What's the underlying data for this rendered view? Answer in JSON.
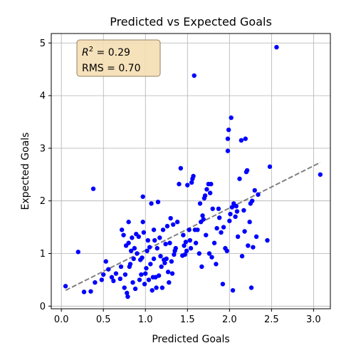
{
  "chart_data": {
    "type": "scatter",
    "title": "Predicted vs Expected Goals",
    "xlabel": "Predicted Goals",
    "ylabel": "Expected Goals",
    "xlim": [
      -0.12,
      3.2
    ],
    "ylim": [
      -0.05,
      5.18
    ],
    "xticks": [
      0.0,
      0.5,
      1.0,
      1.5,
      2.0,
      2.5,
      3.0
    ],
    "xtick_labels": [
      "0.0",
      "0.5",
      "1.0",
      "1.5",
      "2.0",
      "2.5",
      "3.0"
    ],
    "yticks": [
      0,
      1,
      2,
      3,
      4,
      5
    ],
    "ytick_labels": [
      "0",
      "1",
      "2",
      "3",
      "4",
      "5"
    ],
    "grid": true,
    "annotation": {
      "r2_symbol": "R",
      "r2_exponent": "2",
      "r2_value": " = 0.29",
      "rms_text": "RMS = 0.70",
      "placement": "top-left"
    },
    "colors": {
      "points": "#0000ff",
      "fit_line": "#808080",
      "annotation_bg": "#f5deb3",
      "annotation_border": "#8b7355"
    },
    "fit_line": {
      "x": [
        0.05,
        3.08
      ],
      "y": [
        0.3,
        2.73
      ]
    },
    "points": [
      [
        0.05,
        0.38
      ],
      [
        0.2,
        1.03
      ],
      [
        0.27,
        0.27
      ],
      [
        0.35,
        0.28
      ],
      [
        0.38,
        2.23
      ],
      [
        0.4,
        0.45
      ],
      [
        0.48,
        0.5
      ],
      [
        0.5,
        0.6
      ],
      [
        0.53,
        0.85
      ],
      [
        0.56,
        0.7
      ],
      [
        0.6,
        0.55
      ],
      [
        0.62,
        0.48
      ],
      [
        0.65,
        0.62
      ],
      [
        0.7,
        0.52
      ],
      [
        0.71,
        0.75
      ],
      [
        0.72,
        1.45
      ],
      [
        0.74,
        1.35
      ],
      [
        0.75,
        0.35
      ],
      [
        0.76,
        0.6
      ],
      [
        0.77,
        1.15
      ],
      [
        0.78,
        0.25
      ],
      [
        0.79,
        0.18
      ],
      [
        0.8,
        1.6
      ],
      [
        0.8,
        1.2
      ],
      [
        0.81,
        0.75
      ],
      [
        0.82,
        0.8
      ],
      [
        0.83,
        1.05
      ],
      [
        0.84,
        1.3
      ],
      [
        0.85,
        0.45
      ],
      [
        0.86,
        0.9
      ],
      [
        0.87,
        1.1
      ],
      [
        0.88,
        0.33
      ],
      [
        0.89,
        1.37
      ],
      [
        0.9,
        1.0
      ],
      [
        0.92,
        1.32
      ],
      [
        0.93,
        0.5
      ],
      [
        0.94,
        0.88
      ],
      [
        0.95,
        0.6
      ],
      [
        0.96,
        0.92
      ],
      [
        0.97,
        1.6
      ],
      [
        0.97,
        2.08
      ],
      [
        0.98,
        1.4
      ],
      [
        0.99,
        0.42
      ],
      [
        1.0,
        0.62
      ],
      [
        1.01,
        0.72
      ],
      [
        1.02,
        1.05
      ],
      [
        1.03,
        1.25
      ],
      [
        1.04,
        0.5
      ],
      [
        1.05,
        1.12
      ],
      [
        1.06,
        0.8
      ],
      [
        1.07,
        1.95
      ],
      [
        1.08,
        0.3
      ],
      [
        1.09,
        0.55
      ],
      [
        1.1,
        1.45
      ],
      [
        1.1,
        0.9
      ],
      [
        1.11,
        1.25
      ],
      [
        1.12,
        0.55
      ],
      [
        1.13,
        0.35
      ],
      [
        1.14,
        1.1
      ],
      [
        1.15,
        1.98
      ],
      [
        1.16,
        0.58
      ],
      [
        1.17,
        1.3
      ],
      [
        1.18,
        0.95
      ],
      [
        1.19,
        0.75
      ],
      [
        1.2,
        0.35
      ],
      [
        1.21,
        1.45
      ],
      [
        1.22,
        0.88
      ],
      [
        1.23,
        0.82
      ],
      [
        1.24,
        1.18
      ],
      [
        1.25,
        0.9
      ],
      [
        1.26,
        1.52
      ],
      [
        1.27,
        0.65
      ],
      [
        1.28,
        0.45
      ],
      [
        1.29,
        1.2
      ],
      [
        1.3,
        1.67
      ],
      [
        1.31,
        0.85
      ],
      [
        1.32,
        0.62
      ],
      [
        1.33,
        1.55
      ],
      [
        1.34,
        0.98
      ],
      [
        1.35,
        1.05
      ],
      [
        1.36,
        1.1
      ],
      [
        1.38,
        1.6
      ],
      [
        1.4,
        2.32
      ],
      [
        1.42,
        2.62
      ],
      [
        1.44,
        0.96
      ],
      [
        1.45,
        1.35
      ],
      [
        1.46,
        1.15
      ],
      [
        1.47,
        0.98
      ],
      [
        1.48,
        1.22
      ],
      [
        1.49,
        1.05
      ],
      [
        1.5,
        2.3
      ],
      [
        1.52,
        1.45
      ],
      [
        1.53,
        1.25
      ],
      [
        1.54,
        1.1
      ],
      [
        1.55,
        2.35
      ],
      [
        1.56,
        2.42
      ],
      [
        1.57,
        2.47
      ],
      [
        1.58,
        4.38
      ],
      [
        1.59,
        1.45
      ],
      [
        1.6,
        1.2
      ],
      [
        1.62,
        1.45
      ],
      [
        1.64,
        1.0
      ],
      [
        1.65,
        1.95
      ],
      [
        1.66,
        1.6
      ],
      [
        1.67,
        0.75
      ],
      [
        1.68,
        1.72
      ],
      [
        1.69,
        1.65
      ],
      [
        1.7,
        2.05
      ],
      [
        1.71,
        2.1
      ],
      [
        1.72,
        1.35
      ],
      [
        1.73,
        2.22
      ],
      [
        1.75,
        2.32
      ],
      [
        1.76,
        1.0
      ],
      [
        1.77,
        2.15
      ],
      [
        1.78,
        2.32
      ],
      [
        1.79,
        0.93
      ],
      [
        1.8,
        1.85
      ],
      [
        1.82,
        1.2
      ],
      [
        1.84,
        0.8
      ],
      [
        1.85,
        1.48
      ],
      [
        1.87,
        1.85
      ],
      [
        1.88,
        1.68
      ],
      [
        1.9,
        1.4
      ],
      [
        1.92,
        0.42
      ],
      [
        1.93,
        1.5
      ],
      [
        1.95,
        1.1
      ],
      [
        1.97,
        1.05
      ],
      [
        1.98,
        2.95
      ],
      [
        1.98,
        3.18
      ],
      [
        1.99,
        3.35
      ],
      [
        2.0,
        1.62
      ],
      [
        2.01,
        1.75
      ],
      [
        2.02,
        3.58
      ],
      [
        2.03,
        1.88
      ],
      [
        2.04,
        0.3
      ],
      [
        2.05,
        1.95
      ],
      [
        2.07,
        1.7
      ],
      [
        2.08,
        1.9
      ],
      [
        2.09,
        1.8
      ],
      [
        2.1,
        1.32
      ],
      [
        2.12,
        2.42
      ],
      [
        2.14,
        3.15
      ],
      [
        2.15,
        0.95
      ],
      [
        2.17,
        1.82
      ],
      [
        2.18,
        1.42
      ],
      [
        2.19,
        3.18
      ],
      [
        2.2,
        2.55
      ],
      [
        2.21,
        2.58
      ],
      [
        2.22,
        1.15
      ],
      [
        2.24,
        1.6
      ],
      [
        2.25,
        1.95
      ],
      [
        2.26,
        0.35
      ],
      [
        2.27,
        2.0
      ],
      [
        2.28,
        1.12
      ],
      [
        2.3,
        2.2
      ],
      [
        2.32,
        1.32
      ],
      [
        2.34,
        2.12
      ],
      [
        2.45,
        1.25
      ],
      [
        2.48,
        2.65
      ],
      [
        2.56,
        4.92
      ],
      [
        3.08,
        2.5
      ]
    ]
  }
}
